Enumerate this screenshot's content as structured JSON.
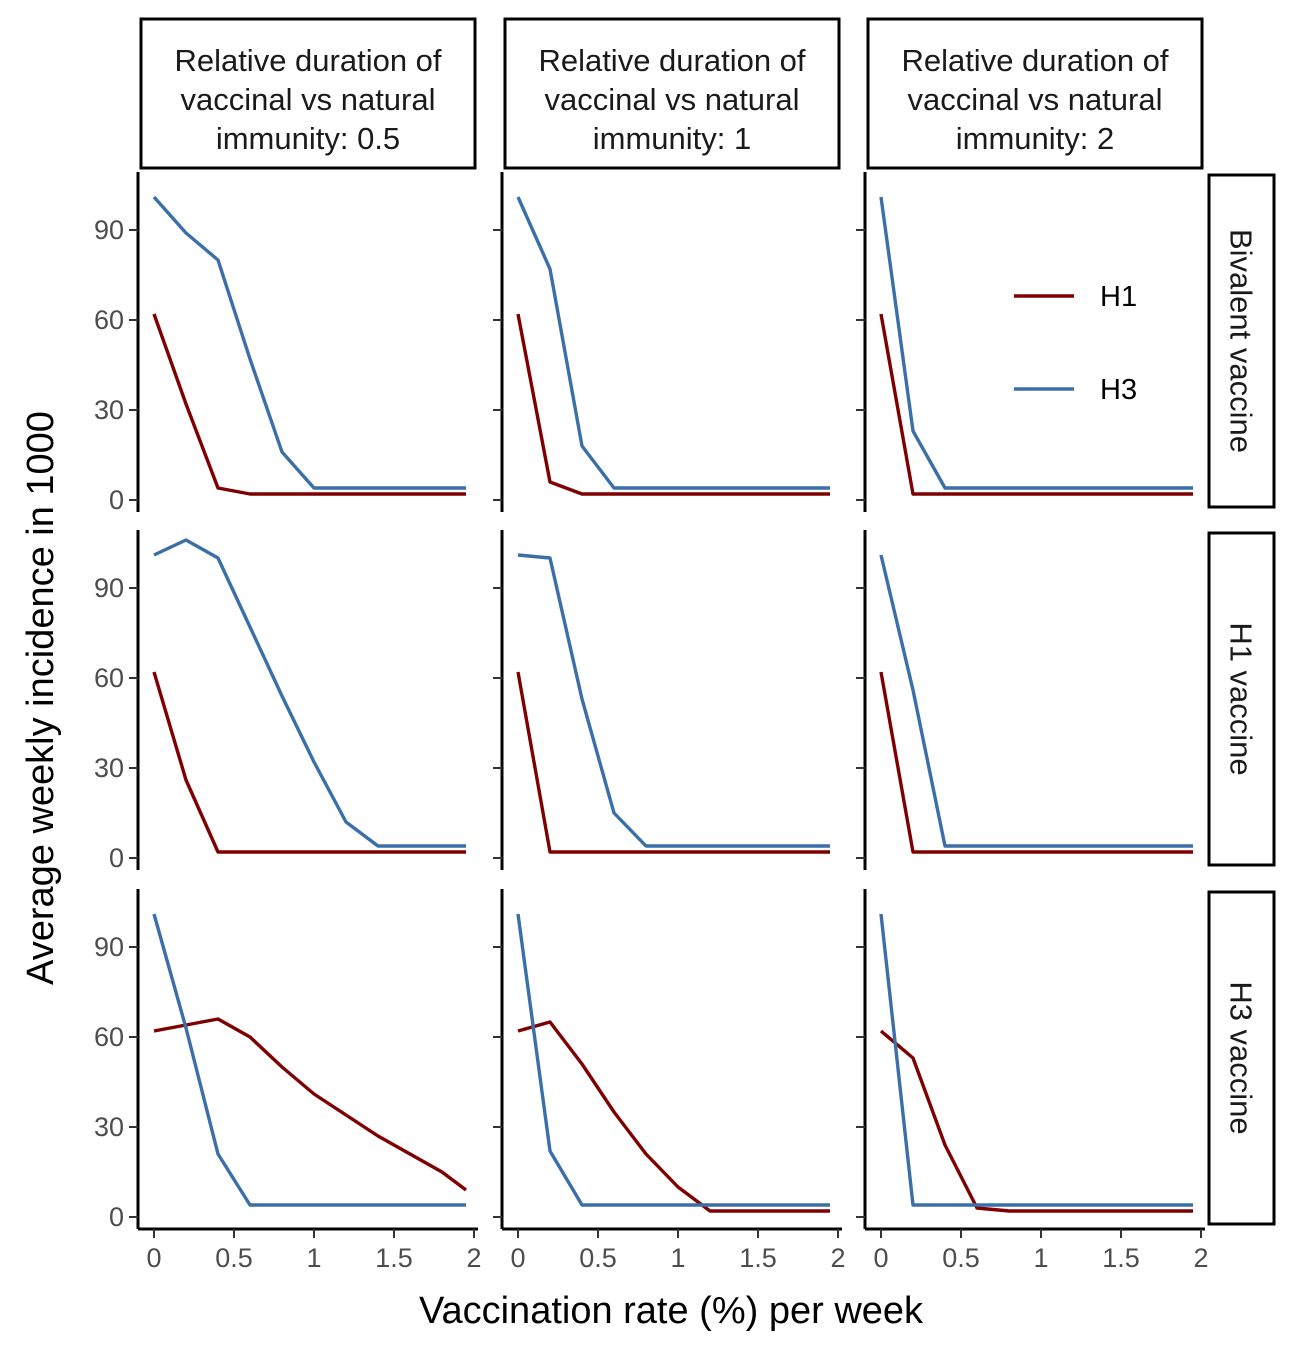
{
  "chart_data": {
    "type": "line",
    "xlabel": "Vaccination rate (%) per week",
    "ylabel": "Average weekly incidence in 1000",
    "x_ticks": [
      "0",
      "0.5",
      "1",
      "1.5",
      "2"
    ],
    "y_ticks": [
      "0",
      "30",
      "60",
      "90"
    ],
    "xlim": [
      -0.08,
      2.0
    ],
    "ylim": [
      -3,
      111
    ],
    "x_tick_values": [
      0,
      0.5,
      1,
      1.5,
      2
    ],
    "y_tick_values": [
      0,
      30,
      60,
      90
    ],
    "col_labels": [
      [
        "Relative duration of",
        "vaccinal vs natural",
        "immunity: 0.5"
      ],
      [
        "Relative duration of",
        "vaccinal vs natural",
        "immunity: 1"
      ],
      [
        "Relative duration of",
        "vaccinal vs natural",
        "immunity: 2"
      ]
    ],
    "row_labels": [
      "Bivalent vaccine",
      "H1 vaccine",
      "H3 vaccine"
    ],
    "legend": {
      "position": "top-right of Bivalent vaccine / immunity 2 panel",
      "entries": [
        {
          "name": "H1",
          "color": "#7f0000"
        },
        {
          "name": "H3",
          "color": "#3a6fa8"
        }
      ]
    },
    "grid": false,
    "x": [
      0,
      0.2,
      0.4,
      0.6,
      0.8,
      1.0,
      1.2,
      1.4,
      1.6,
      1.8,
      1.95
    ],
    "panels": [
      [
        {
          "series": [
            {
              "name": "H1",
              "values": [
                62,
                32,
                4,
                2,
                2,
                2,
                2,
                2,
                2,
                2,
                2
              ]
            },
            {
              "name": "H3",
              "values": [
                101,
                89,
                80,
                47,
                16,
                4,
                4,
                4,
                4,
                4,
                4
              ]
            }
          ]
        },
        {
          "series": [
            {
              "name": "H1",
              "values": [
                62,
                6,
                2,
                2,
                2,
                2,
                2,
                2,
                2,
                2,
                2
              ]
            },
            {
              "name": "H3",
              "values": [
                101,
                77,
                18,
                4,
                4,
                4,
                4,
                4,
                4,
                4,
                4
              ]
            }
          ]
        },
        {
          "series": [
            {
              "name": "H1",
              "values": [
                62,
                2,
                2,
                2,
                2,
                2,
                2,
                2,
                2,
                2,
                2
              ]
            },
            {
              "name": "H3",
              "values": [
                101,
                23,
                4,
                4,
                4,
                4,
                4,
                4,
                4,
                4,
                4
              ]
            }
          ]
        }
      ],
      [
        {
          "series": [
            {
              "name": "H1",
              "values": [
                62,
                26,
                2,
                2,
                2,
                2,
                2,
                2,
                2,
                2,
                2
              ]
            },
            {
              "name": "H3",
              "values": [
                101,
                106,
                100,
                77,
                54,
                32,
                12,
                4,
                4,
                4,
                4
              ]
            }
          ]
        },
        {
          "series": [
            {
              "name": "H1",
              "values": [
                62,
                2,
                2,
                2,
                2,
                2,
                2,
                2,
                2,
                2,
                2
              ]
            },
            {
              "name": "H3",
              "values": [
                101,
                100,
                53,
                15,
                4,
                4,
                4,
                4,
                4,
                4,
                4
              ]
            }
          ]
        },
        {
          "series": [
            {
              "name": "H1",
              "values": [
                62,
                2,
                2,
                2,
                2,
                2,
                2,
                2,
                2,
                2,
                2
              ]
            },
            {
              "name": "H3",
              "values": [
                101,
                56,
                4,
                4,
                4,
                4,
                4,
                4,
                4,
                4,
                4
              ]
            }
          ]
        }
      ],
      [
        {
          "series": [
            {
              "name": "H1",
              "values": [
                62,
                64,
                66,
                60,
                50,
                41,
                34,
                27,
                21,
                15,
                9
              ]
            },
            {
              "name": "H3",
              "values": [
                101,
                63,
                21,
                4,
                4,
                4,
                4,
                4,
                4,
                4,
                4
              ]
            }
          ]
        },
        {
          "series": [
            {
              "name": "H1",
              "values": [
                62,
                65,
                51,
                35,
                21,
                10,
                2,
                2,
                2,
                2,
                2
              ]
            },
            {
              "name": "H3",
              "values": [
                101,
                22,
                4,
                4,
                4,
                4,
                4,
                4,
                4,
                4,
                4
              ]
            }
          ]
        },
        {
          "series": [
            {
              "name": "H1",
              "values": [
                62,
                53,
                24,
                3,
                2,
                2,
                2,
                2,
                2,
                2,
                2
              ]
            },
            {
              "name": "H3",
              "values": [
                101,
                4,
                4,
                4,
                4,
                4,
                4,
                4,
                4,
                4,
                4
              ]
            }
          ]
        }
      ]
    ]
  }
}
